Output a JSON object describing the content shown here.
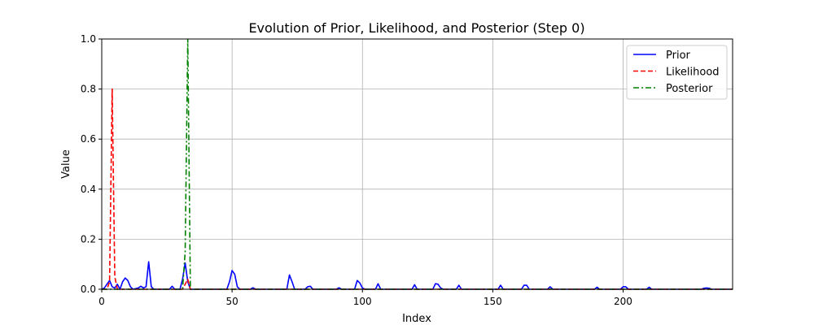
{
  "chart_data": {
    "type": "line",
    "title": "Evolution of Prior, Likelihood, and Posterior (Step 0)",
    "xlabel": "Index",
    "ylabel": "Value",
    "xlim": [
      0,
      242
    ],
    "ylim": [
      0,
      1.0
    ],
    "grid": true,
    "legend_position": "top-right",
    "x_ticks": [
      0,
      50,
      100,
      150,
      200
    ],
    "x_tick_labels": [
      "0",
      "50",
      "100",
      "150",
      "200"
    ],
    "y_ticks": [
      0.0,
      0.2,
      0.4,
      0.6,
      0.8,
      1.0
    ],
    "y_tick_labels": [
      "0.0",
      "0.2",
      "0.4",
      "0.6",
      "0.8",
      "1.0"
    ],
    "series": [
      {
        "name": "Prior",
        "color": "#0000ff",
        "linestyle": "solid",
        "points": [
          [
            0,
            0.0
          ],
          [
            1,
            0.005
          ],
          [
            2,
            0.02
          ],
          [
            3,
            0.035
          ],
          [
            4,
            0.01
          ],
          [
            5,
            0.005
          ],
          [
            6,
            0.02
          ],
          [
            7,
            0.0
          ],
          [
            8,
            0.03
          ],
          [
            9,
            0.045
          ],
          [
            10,
            0.035
          ],
          [
            11,
            0.01
          ],
          [
            12,
            0.0
          ],
          [
            14,
            0.005
          ],
          [
            15,
            0.012
          ],
          [
            16,
            0.005
          ],
          [
            17,
            0.01
          ],
          [
            18,
            0.11
          ],
          [
            19,
            0.01
          ],
          [
            20,
            0.0
          ],
          [
            26,
            0.0
          ],
          [
            27,
            0.012
          ],
          [
            28,
            0.0
          ],
          [
            30,
            0.0
          ],
          [
            31,
            0.04
          ],
          [
            32,
            0.105
          ],
          [
            33,
            0.03
          ],
          [
            34,
            0.0
          ],
          [
            48,
            0.0
          ],
          [
            49,
            0.03
          ],
          [
            50,
            0.075
          ],
          [
            51,
            0.06
          ],
          [
            52,
            0.01
          ],
          [
            53,
            0.0
          ],
          [
            57,
            0.0
          ],
          [
            58,
            0.006
          ],
          [
            59,
            0.0
          ],
          [
            71,
            0.0
          ],
          [
            72,
            0.057
          ],
          [
            73,
            0.03
          ],
          [
            74,
            0.0
          ],
          [
            78,
            0.0
          ],
          [
            79,
            0.01
          ],
          [
            80,
            0.012
          ],
          [
            81,
            0.0
          ],
          [
            90,
            0.0
          ],
          [
            91,
            0.006
          ],
          [
            92,
            0.0
          ],
          [
            97,
            0.0
          ],
          [
            98,
            0.035
          ],
          [
            99,
            0.025
          ],
          [
            100,
            0.005
          ],
          [
            101,
            0.0
          ],
          [
            105,
            0.0
          ],
          [
            106,
            0.022
          ],
          [
            107,
            0.0
          ],
          [
            119,
            0.0
          ],
          [
            120,
            0.018
          ],
          [
            121,
            0.0
          ],
          [
            127,
            0.0
          ],
          [
            128,
            0.022
          ],
          [
            129,
            0.02
          ],
          [
            130,
            0.005
          ],
          [
            131,
            0.0
          ],
          [
            136,
            0.0
          ],
          [
            137,
            0.016
          ],
          [
            138,
            0.0
          ],
          [
            152,
            0.0
          ],
          [
            153,
            0.016
          ],
          [
            154,
            0.0
          ],
          [
            161,
            0.0
          ],
          [
            162,
            0.016
          ],
          [
            163,
            0.016
          ],
          [
            164,
            0.0
          ],
          [
            171,
            0.0
          ],
          [
            172,
            0.01
          ],
          [
            173,
            0.0
          ],
          [
            189,
            0.0
          ],
          [
            190,
            0.008
          ],
          [
            191,
            0.0
          ],
          [
            199,
            0.0
          ],
          [
            200,
            0.01
          ],
          [
            201,
            0.01
          ],
          [
            202,
            0.0
          ],
          [
            209,
            0.0
          ],
          [
            210,
            0.008
          ],
          [
            211,
            0.0
          ],
          [
            230,
            0.0
          ],
          [
            231,
            0.004
          ],
          [
            232,
            0.005
          ],
          [
            233,
            0.004
          ],
          [
            234,
            0.0
          ],
          [
            242,
            0.0
          ]
        ]
      },
      {
        "name": "Likelihood",
        "color": "#ff0000",
        "linestyle": "dashed",
        "points": [
          [
            0,
            0.0
          ],
          [
            2,
            0.0
          ],
          [
            3,
            0.03
          ],
          [
            4,
            0.8
          ],
          [
            5,
            0.05
          ],
          [
            6,
            0.0
          ],
          [
            31,
            0.0
          ],
          [
            32,
            0.02
          ],
          [
            33,
            0.04
          ],
          [
            34,
            0.0
          ],
          [
            242,
            0.0
          ]
        ]
      },
      {
        "name": "Posterior",
        "color": "#008000",
        "linestyle": "dashdot",
        "points": [
          [
            0,
            0.0
          ],
          [
            30,
            0.0
          ],
          [
            31,
            0.0
          ],
          [
            32,
            0.15
          ],
          [
            33,
            1.0
          ],
          [
            34,
            0.0
          ],
          [
            242,
            0.0
          ]
        ]
      }
    ]
  }
}
